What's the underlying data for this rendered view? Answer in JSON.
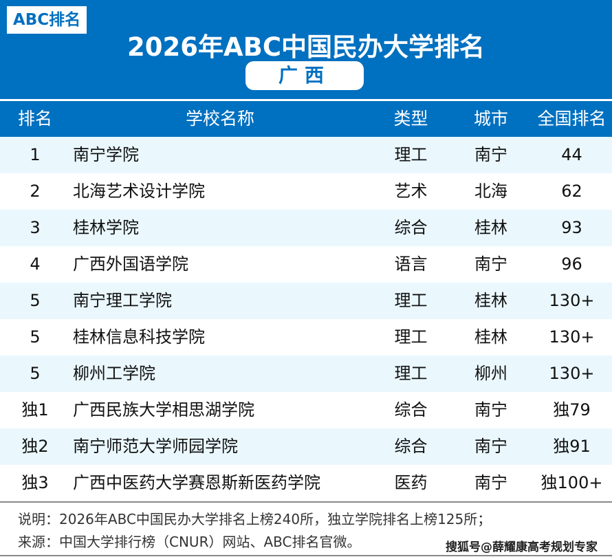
{
  "header": {
    "logo": "ABC排名",
    "title": "2026年ABC中国民办大学排名",
    "region": "广西",
    "brand_color": "#0070c0"
  },
  "columns": [
    "排名",
    "学校名称",
    "类型",
    "城市",
    "全国排名"
  ],
  "rows": [
    [
      "1",
      "南宁学院",
      "理工",
      "南宁",
      "44"
    ],
    [
      "2",
      "北海艺术设计学院",
      "艺术",
      "北海",
      "62"
    ],
    [
      "3",
      "桂林学院",
      "综合",
      "桂林",
      "93"
    ],
    [
      "4",
      "广西外国语学院",
      "语言",
      "南宁",
      "96"
    ],
    [
      "5",
      "南宁理工学院",
      "理工",
      "桂林",
      "130+"
    ],
    [
      "5",
      "桂林信息科技学院",
      "理工",
      "桂林",
      "130+"
    ],
    [
      "5",
      "柳州工学院",
      "理工",
      "柳州",
      "130+"
    ],
    [
      "独1",
      "广西民族大学相思湖学院",
      "综合",
      "南宁",
      "独79"
    ],
    [
      "独2",
      "南宁师范大学师园学院",
      "综合",
      "南宁",
      "独91"
    ],
    [
      "独3",
      "广西中医药大学赛恩斯新医药学院",
      "医药",
      "南宁",
      "独100+"
    ]
  ],
  "footer": {
    "note": "说明：2026年ABC中国民办大学排名上榜240所，独立学院排名上榜125所；",
    "source": "来源：中国大学排行榜（CNUR）网站、ABC排名官微。",
    "watermark": "搜狐号@薛耀康高考规划专家"
  }
}
